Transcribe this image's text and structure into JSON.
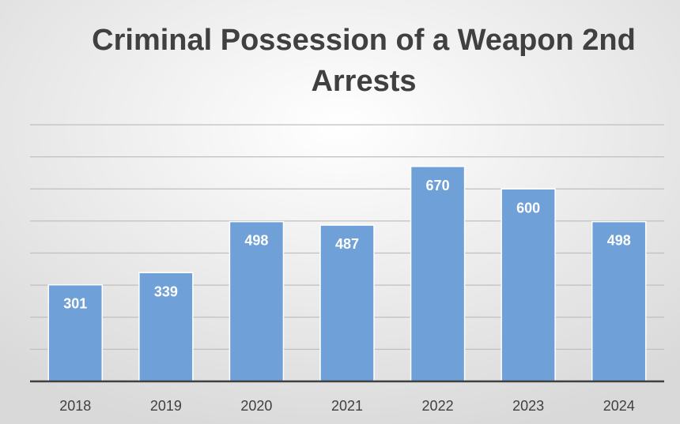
{
  "title": {
    "line1": "Criminal Possession of a Weapon 2nd",
    "line2": "Arrests"
  },
  "colors": {
    "bar": "#6fa0d8",
    "bar_stroke": "#ffffff",
    "gridline": "#bfbfbf",
    "axis": "#404040",
    "background_center": "#ffffff",
    "background_edge": "#d9d9d9"
  },
  "chart_data": {
    "type": "bar",
    "title": "Criminal Possession of a Weapon 2nd Arrests",
    "xlabel": "",
    "ylabel": "",
    "categories": [
      "2018",
      "2019",
      "2020",
      "2021",
      "2022",
      "2023",
      "2024"
    ],
    "values": [
      301,
      339,
      498,
      487,
      670,
      600,
      498
    ],
    "data_labels": [
      "301",
      "339",
      "498",
      "487",
      "670",
      "600",
      "498"
    ],
    "ylim": [
      0,
      800
    ],
    "gridline_values": [
      100,
      200,
      300,
      400,
      500,
      600,
      700,
      800
    ],
    "grid": true,
    "y_axis_visible": false,
    "legend": "none"
  }
}
